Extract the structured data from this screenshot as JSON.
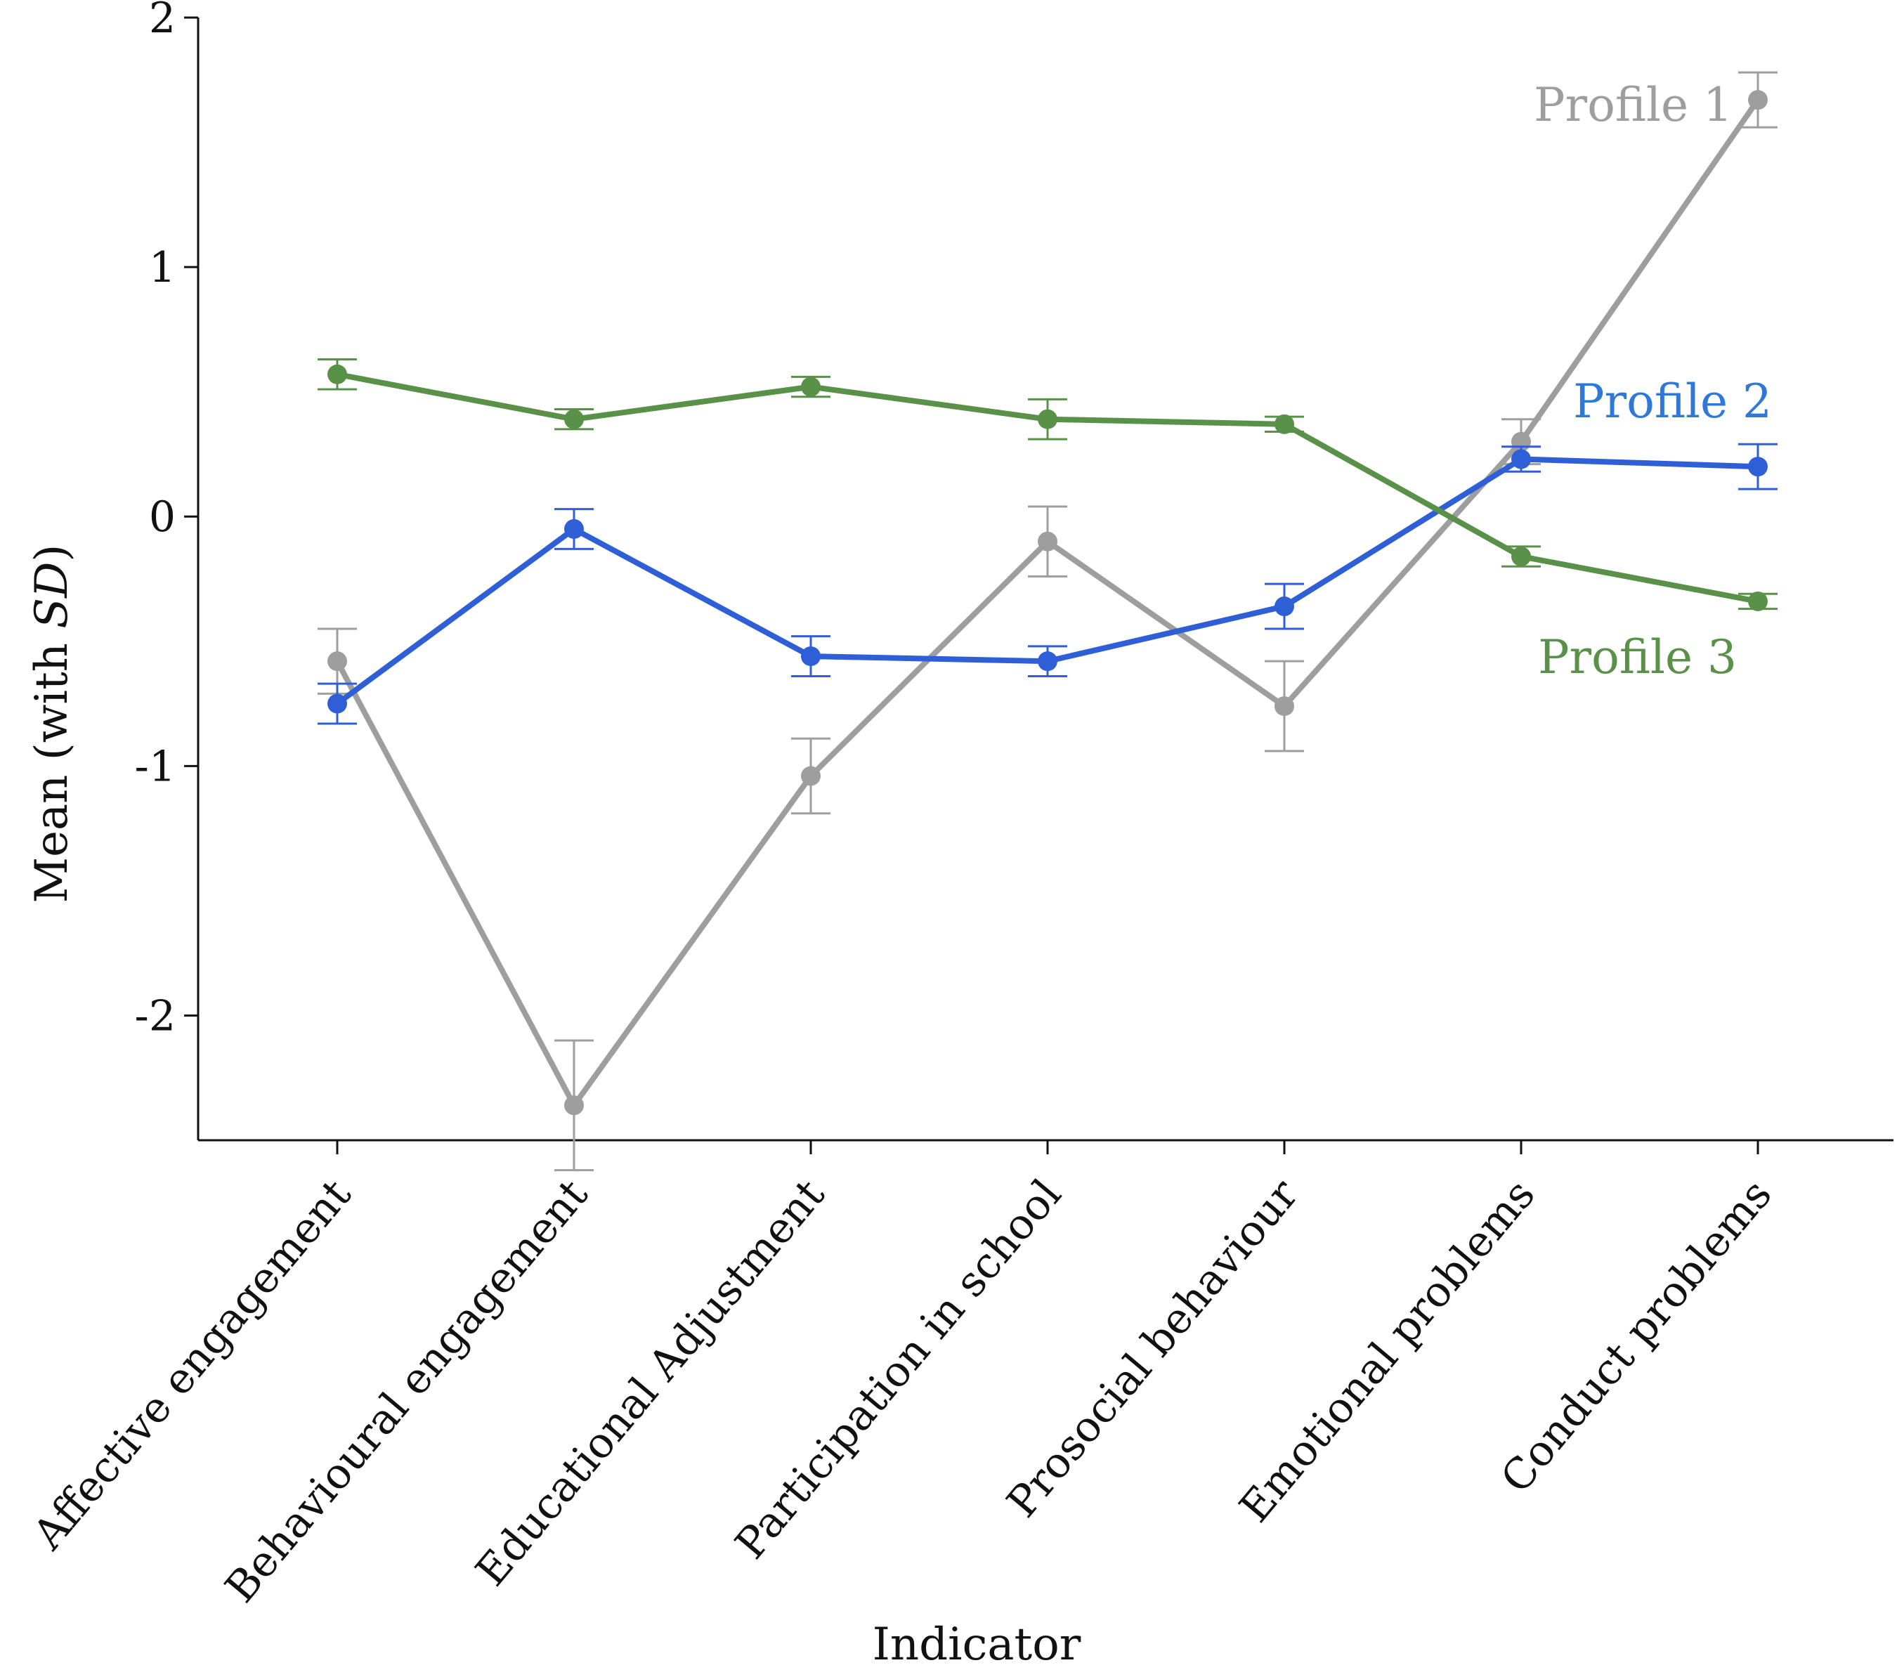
{
  "chart_data": {
    "type": "line",
    "title": "",
    "xlabel": "Indicator",
    "ylabel": "Mean (with ",
    "ylabel_italic": "SD",
    "ylabel_end": ")",
    "ylim": [
      -2.5,
      2
    ],
    "yticks": [
      2,
      1,
      0,
      -1,
      -2
    ],
    "ytick_labels": [
      "2",
      "1",
      "0",
      "-1",
      "-2"
    ],
    "grid": false,
    "legend": "inline labels near line ends",
    "categories": [
      "Affective engagement",
      "Behavioural engagement",
      "Educational Adjustment",
      "Participation in school",
      "Prosocial behaviour",
      "Emotional problems",
      "Conduct problems"
    ],
    "series": [
      {
        "name": "Profile 1",
        "color": "#9e9e9e",
        "values": [
          -0.58,
          -2.36,
          -1.04,
          -0.1,
          -0.76,
          0.3,
          1.67
        ],
        "sd": [
          0.13,
          0.26,
          0.15,
          0.14,
          0.18,
          0.09,
          0.11
        ]
      },
      {
        "name": "Profile 2",
        "color": "#2f5fd6",
        "values": [
          -0.75,
          -0.05,
          -0.56,
          -0.58,
          -0.36,
          0.23,
          0.2
        ],
        "sd": [
          0.08,
          0.08,
          0.08,
          0.06,
          0.09,
          0.05,
          0.09
        ]
      },
      {
        "name": "Profile 3",
        "color": "#5a9148",
        "values": [
          0.57,
          0.39,
          0.52,
          0.39,
          0.37,
          -0.16,
          -0.34
        ],
        "sd": [
          0.06,
          0.04,
          0.04,
          0.08,
          0.03,
          0.04,
          0.03
        ]
      }
    ]
  }
}
